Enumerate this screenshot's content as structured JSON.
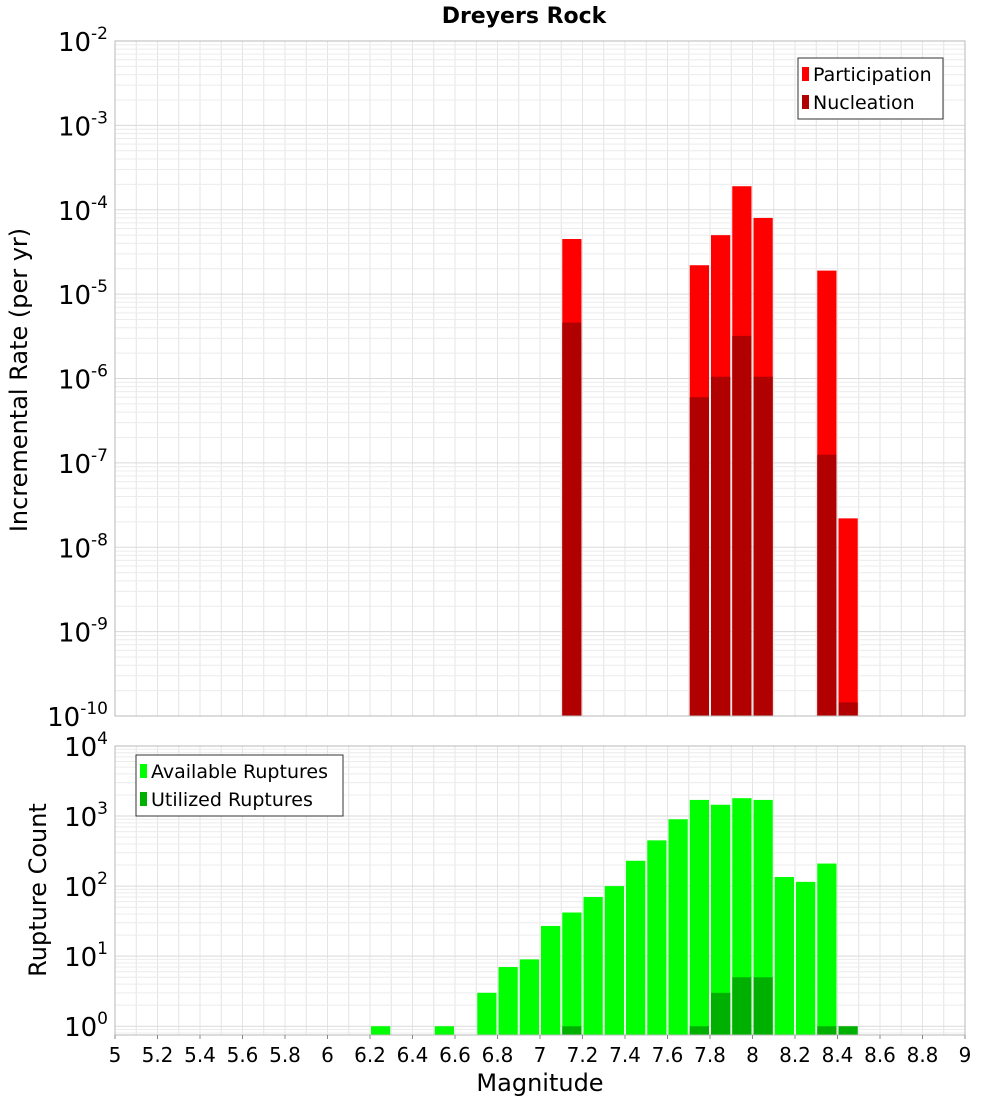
{
  "chart_data": [
    {
      "type": "bar",
      "title": "Dreyers Rock",
      "xlabel": "",
      "ylabel": "Incremental Rate (per yr)",
      "yscale": "log",
      "ylim": [
        1e-10,
        0.01
      ],
      "xlim": [
        5,
        9
      ],
      "bin_width": 0.1,
      "grid": true,
      "legend_position": "top-right",
      "y_ticks": [
        {
          "base": "10",
          "exp": "-10"
        },
        {
          "base": "10",
          "exp": "-9"
        },
        {
          "base": "10",
          "exp": "-8"
        },
        {
          "base": "10",
          "exp": "-7"
        },
        {
          "base": "10",
          "exp": "-6"
        },
        {
          "base": "10",
          "exp": "-5"
        },
        {
          "base": "10",
          "exp": "-4"
        },
        {
          "base": "10",
          "exp": "-3"
        },
        {
          "base": "10",
          "exp": "-2"
        }
      ],
      "series": [
        {
          "name": "Participation",
          "color": "#ff0000",
          "x": [
            7.15,
            7.75,
            7.85,
            7.95,
            8.05,
            8.35,
            8.45
          ],
          "values": [
            4.5e-05,
            2.2e-05,
            5e-05,
            0.00019,
            8e-05,
            1.9e-05,
            2.2e-08
          ]
        },
        {
          "name": "Nucleation",
          "color": "#b00000",
          "x": [
            7.15,
            7.75,
            7.85,
            7.95,
            8.05,
            8.35,
            8.45
          ],
          "values": [
            4.6e-06,
            6e-07,
            1.05e-06,
            3.2e-06,
            1.05e-06,
            1.25e-07,
            1.45e-10
          ]
        }
      ]
    },
    {
      "type": "bar",
      "title": "",
      "xlabel": "Magnitude",
      "ylabel": "Rupture Count",
      "yscale": "log",
      "ylim": [
        0.75,
        10000
      ],
      "xlim": [
        5,
        9
      ],
      "bin_width": 0.1,
      "grid": true,
      "legend_position": "top-left",
      "x_ticks": [
        "5",
        "5.2",
        "5.4",
        "5.6",
        "5.8",
        "6",
        "6.2",
        "6.4",
        "6.6",
        "6.8",
        "7",
        "7.2",
        "7.4",
        "7.6",
        "7.8",
        "8",
        "8.2",
        "8.4",
        "8.6",
        "8.8",
        "9"
      ],
      "y_ticks": [
        {
          "base": "10",
          "exp": "0"
        },
        {
          "base": "10",
          "exp": "1"
        },
        {
          "base": "10",
          "exp": "2"
        },
        {
          "base": "10",
          "exp": "3"
        },
        {
          "base": "10",
          "exp": "4"
        }
      ],
      "series": [
        {
          "name": "Available Ruptures",
          "color": "#00ff00",
          "x": [
            6.25,
            6.55,
            6.75,
            6.85,
            6.95,
            7.05,
            7.15,
            7.25,
            7.35,
            7.45,
            7.55,
            7.65,
            7.75,
            7.85,
            7.95,
            8.05,
            8.15,
            8.25,
            8.35
          ],
          "values": [
            1,
            1,
            3,
            7,
            9,
            27,
            42,
            70,
            100,
            230,
            450,
            900,
            1700,
            1450,
            1800,
            1700,
            135,
            115,
            210
          ]
        },
        {
          "name": "Utilized Ruptures",
          "color": "#00b000",
          "x": [
            7.15,
            7.75,
            7.85,
            7.95,
            8.05,
            8.35,
            8.45
          ],
          "values": [
            1,
            1,
            3,
            5,
            5,
            1,
            1
          ]
        }
      ]
    }
  ]
}
